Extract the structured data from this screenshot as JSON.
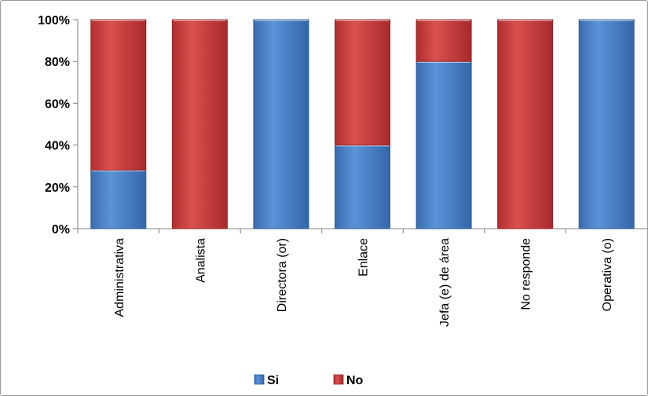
{
  "chart_data": {
    "type": "bar",
    "stacked": true,
    "categories": [
      "Administrativa",
      "Analista",
      "Directora (or)",
      "Enlace",
      "Jefa (e) de área",
      "No responde",
      "Operativa (o)"
    ],
    "series": [
      {
        "name": "Si",
        "color": "#4a7ebb",
        "values": [
          28,
          0,
          100,
          40,
          80,
          0,
          100
        ]
      },
      {
        "name": "No",
        "color": "#c0393a",
        "values": [
          72,
          100,
          0,
          60,
          20,
          100,
          0
        ]
      }
    ],
    "ylim": [
      0,
      100
    ],
    "y_ticks": [
      "0%",
      "20%",
      "40%",
      "60%",
      "80%",
      "100%"
    ],
    "y_tick_values": [
      0,
      20,
      40,
      60,
      80,
      100
    ],
    "grid": false,
    "legend_position": "bottom",
    "title": "",
    "xlabel": "",
    "ylabel": ""
  }
}
